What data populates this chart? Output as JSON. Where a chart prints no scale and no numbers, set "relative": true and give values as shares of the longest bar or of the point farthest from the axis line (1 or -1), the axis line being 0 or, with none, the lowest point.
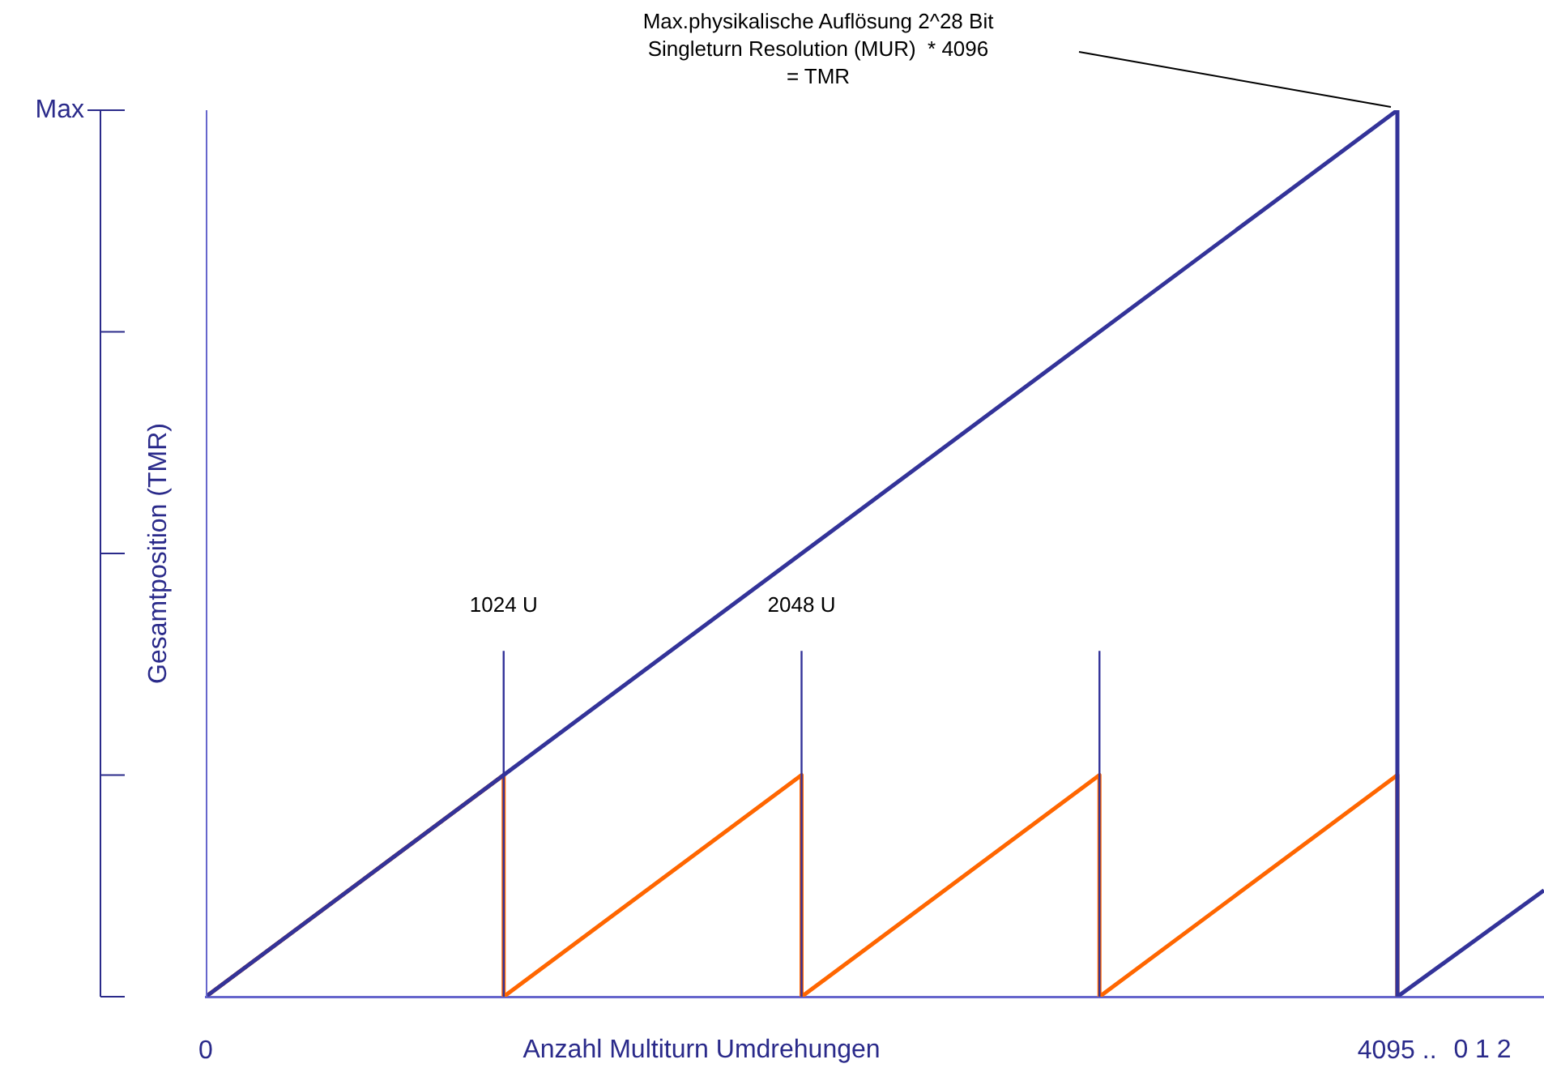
{
  "chart_data": {
    "type": "line",
    "relative": true,
    "xlabel": "Anzahl Multiturn Umdrehungen",
    "ylabel": "Gesamtposition (TMR)",
    "xlim": [
      0,
      4600
    ],
    "xticks": [
      {
        "value": 0,
        "label": "0"
      },
      {
        "value": 4095,
        "label": "4095 .."
      }
    ],
    "x2lim": [
      0,
      4600
    ],
    "x2ticks": [
      {
        "value": 1024,
        "label": "1024 U"
      },
      {
        "value": 2048,
        "label": "2048 U"
      }
    ],
    "series": [
      {
        "color": "#333399",
        "x": [
          0,
          4096,
          4096,
          4600
        ],
        "values": [
          0,
          1,
          0,
          0.12
        ]
      },
      {
        "color": "#333399",
        "x": [
          1024,
          1024
        ],
        "values": [
          0,
          0.39
        ]
      },
      {
        "color": "#333399",
        "x": [
          2048,
          2048
        ],
        "values": [
          0,
          0.39
        ]
      },
      {
        "color": "#333399",
        "x": [
          3072,
          3072
        ],
        "values": [
          0,
          0.39
        ]
      },
      {
        "color": "#ff6600",
        "x": [
          0,
          1024,
          1024,
          2048,
          2048,
          3072,
          3072,
          4096,
          4096
        ],
        "values": [
          0,
          0.25,
          0,
          0.25,
          0,
          0.25,
          0,
          0.25,
          0
        ]
      }
    ],
    "annotations": [
      "Max",
      "0 1 2",
      "Max.physikalische Auflösung 2^28 Bit\nSingleturn Resolution (MUR)  * 4096\n= TMR"
    ],
    "marker": "none",
    "line_style": "solid"
  }
}
